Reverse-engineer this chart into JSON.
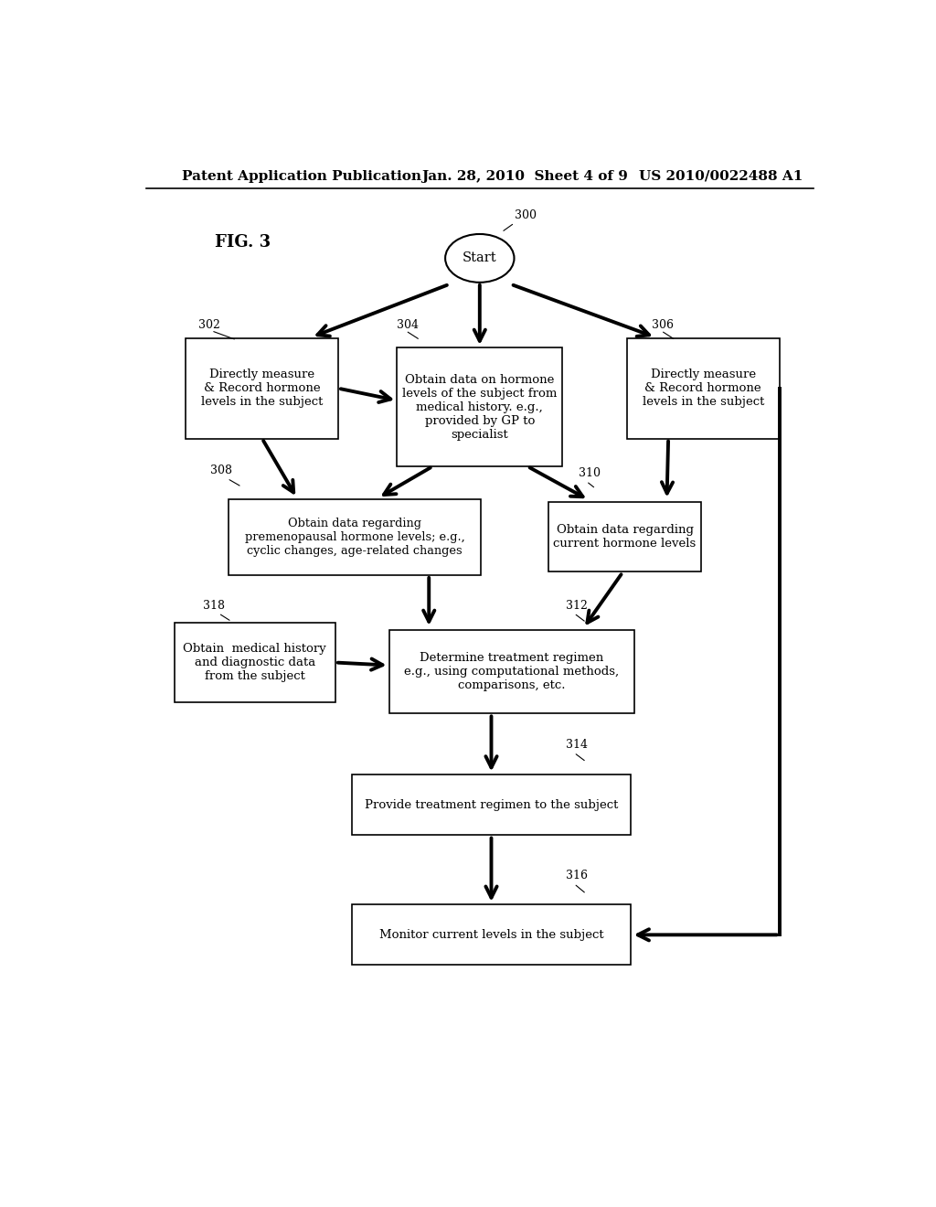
{
  "background_color": "#ffffff",
  "header_text1": "Patent Application Publication",
  "header_text2": "Jan. 28, 2010  Sheet 4 of 9",
  "header_text3": "US 2010/0022488 A1",
  "fig_label": "FIG. 3",
  "font_size_header": 11,
  "font_size_fig": 13,
  "font_size_node": 9.5,
  "font_size_label": 9
}
